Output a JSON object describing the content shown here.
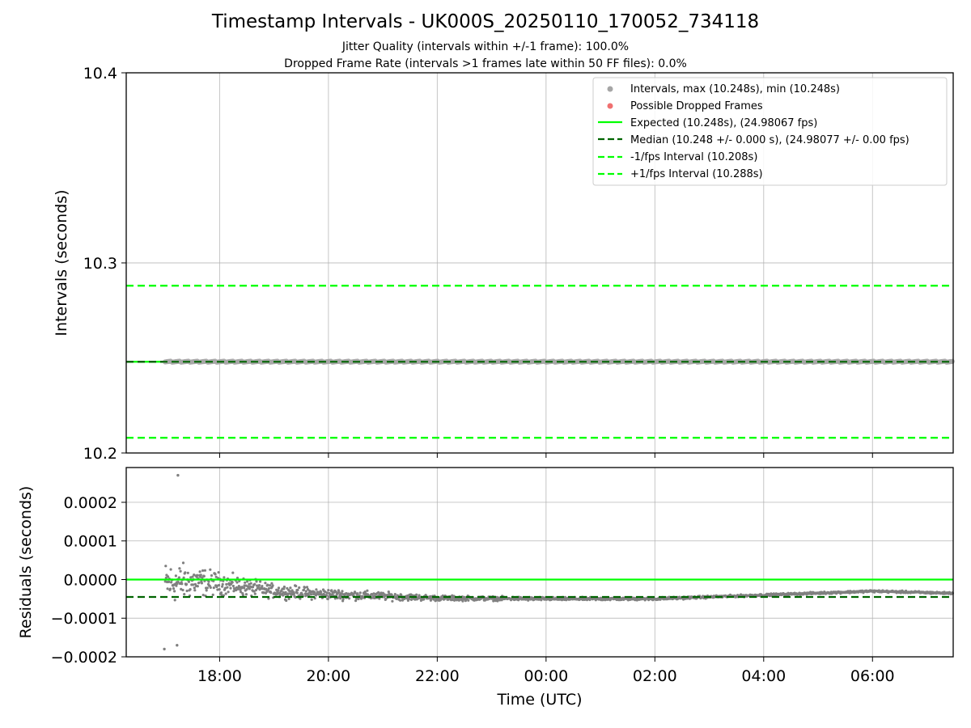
{
  "chart_data": {
    "type": "scatter",
    "title": "Timestamp Intervals - UK000S_20250110_170052_734118",
    "subtitle_lines": [
      "Jitter Quality (intervals within +/-1 frame): 100.0%",
      "Dropped Frame Rate (intervals >1 frames late within 50 FF files): 0.0%"
    ],
    "xlabel": "Time (UTC)",
    "x_ticks": [
      "18:00",
      "20:00",
      "22:00",
      "00:00",
      "02:00",
      "04:00",
      "06:00"
    ],
    "x_range": [
      "2025-01-10 16:17",
      "2025-01-11 07:29"
    ],
    "grid": true,
    "panels": [
      {
        "name": "intervals",
        "ylabel": "Intervals (seconds)",
        "ylim": [
          10.2,
          10.4
        ],
        "y_ticks": [
          "10.2",
          "10.3",
          "10.4"
        ],
        "legend_position": "top-right",
        "series": [
          {
            "name": "Intervals, max (10.248s), min (10.248s)",
            "kind": "scatter",
            "color": "#a6a6a6",
            "y": 10.248,
            "x_start": "2025-01-10 17:00",
            "x_end": "2025-01-11 07:30"
          },
          {
            "name": "Possible Dropped Frames",
            "kind": "scatter",
            "color": "#f07070",
            "points": []
          },
          {
            "name": "Expected (10.248s), (24.98067 fps)",
            "kind": "hline",
            "style": "solid",
            "color": "#00ff00",
            "y": 10.248
          },
          {
            "name": "Median (10.248 +/- 0.000 s), (24.98077 +/- 0.00 fps)",
            "kind": "hline",
            "style": "dashed",
            "color": "#006400",
            "y": 10.248
          },
          {
            "name": "-1/fps Interval (10.208s)",
            "kind": "hline",
            "style": "dashed",
            "color": "#00ff00",
            "y": 10.208
          },
          {
            "name": "+1/fps Interval (10.288s)",
            "kind": "hline",
            "style": "dashed",
            "color": "#00ff00",
            "y": 10.288
          }
        ]
      },
      {
        "name": "residuals",
        "ylabel": "Residuals (seconds)",
        "ylim": [
          -0.0002,
          0.00029
        ],
        "y_ticks": [
          "−0.0002",
          "−0.0001",
          "0.0000",
          "0.0001",
          "0.0002"
        ],
        "series": [
          {
            "name": "residuals",
            "kind": "scatter",
            "color": "#808080",
            "trend": [
              {
                "t": "2025-01-10 17:00",
                "y": -1e-05,
                "spread": 8e-05
              },
              {
                "t": "2025-01-10 17:30",
                "y": -5e-06,
                "spread": 6e-05
              },
              {
                "t": "2025-01-10 18:00",
                "y": -1e-05,
                "spread": 4e-05
              },
              {
                "t": "2025-01-10 19:00",
                "y": -3e-05,
                "spread": 2.5e-05
              },
              {
                "t": "2025-01-10 20:00",
                "y": -3.8e-05,
                "spread": 2e-05
              },
              {
                "t": "2025-01-10 22:00",
                "y": -4.8e-05,
                "spread": 1e-05
              },
              {
                "t": "2025-01-11 00:00",
                "y": -5e-05,
                "spread": 6e-06
              },
              {
                "t": "2025-01-11 02:00",
                "y": -5e-05,
                "spread": 5e-06
              },
              {
                "t": "2025-01-11 04:00",
                "y": -4e-05,
                "spread": 4e-06
              },
              {
                "t": "2025-01-11 06:00",
                "y": -3e-05,
                "spread": 4e-06
              },
              {
                "t": "2025-01-11 07:20",
                "y": -3.5e-05,
                "spread": 4e-06
              }
            ],
            "outliers": [
              {
                "t": "2025-01-10 17:14",
                "y": 0.00027
              },
              {
                "t": "2025-01-10 16:59",
                "y": -0.00018
              },
              {
                "t": "2025-01-10 17:13",
                "y": -0.00017
              }
            ]
          },
          {
            "name": "expected",
            "kind": "hline",
            "style": "solid",
            "color": "#00ff00",
            "y": 0.0
          },
          {
            "name": "median",
            "kind": "hline",
            "style": "dashed",
            "color": "#006400",
            "y": -4.5e-05
          }
        ]
      }
    ]
  }
}
